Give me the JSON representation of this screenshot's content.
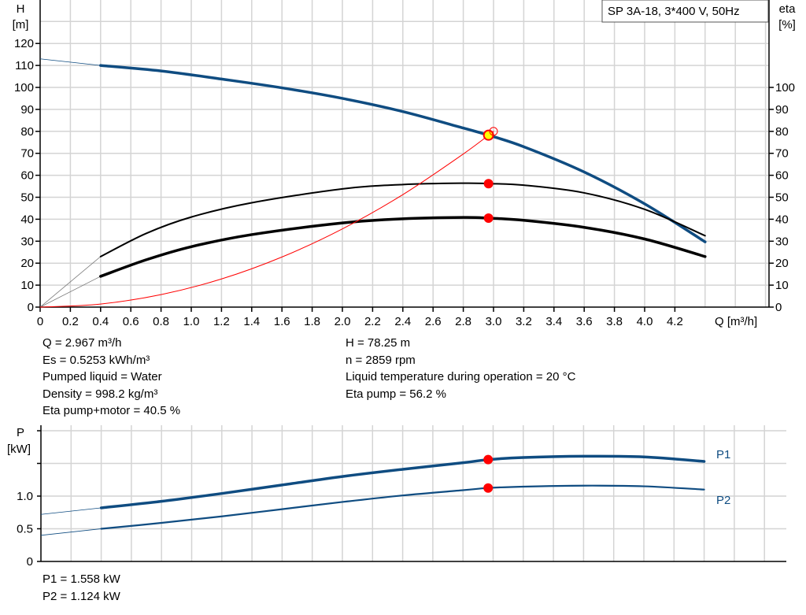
{
  "legend_box": "SP 3A-18, 3*400 V, 50Hz",
  "info_top": {
    "left": [
      "Q = 2.967 m³/h",
      "Es = 0.5253 kWh/m³",
      "Pumped liquid = Water",
      "Density = 998.2 kg/m³",
      "Eta pump+motor = 40.5 %"
    ],
    "right": [
      "H = 78.25 m",
      "n = 2859 rpm",
      "Liquid temperature during operation = 20 °C",
      "Eta pump = 56.2 %"
    ]
  },
  "info_bottom": [
    "P1 = 1.558 kW",
    "P2 = 1.124 kW"
  ],
  "colors": {
    "head": "#0f4c81",
    "eta": "#000000",
    "system": "#ff0000",
    "power": "#0f4c81",
    "marker": "#ff0000",
    "op_marker": "#ffff00",
    "grid": "#d4d4d4"
  },
  "chart_data": [
    {
      "type": "line",
      "title": "",
      "xlabel": "Q [m³/h]",
      "ylabel": "H\n[m]",
      "y2label": "eta\n[%]",
      "ylabel_lines": [
        "H",
        "[m]"
      ],
      "y2label_lines": [
        "eta",
        "[%]"
      ],
      "xlim": [
        0,
        4.83
      ],
      "ylim": [
        0,
        140
      ],
      "y2lim": [
        0,
        140
      ],
      "xticks": [
        "0",
        "0.2",
        "0.4",
        "0.6",
        "0.8",
        "1.0",
        "1.2",
        "1.4",
        "1.6",
        "1.8",
        "2.0",
        "2.2",
        "2.4",
        "2.6",
        "2.8",
        "3.0",
        "3.2",
        "3.4",
        "3.6",
        "3.8",
        "4.0",
        "4.2"
      ],
      "yticks": [
        "0",
        "10",
        "20",
        "30",
        "40",
        "50",
        "60",
        "70",
        "80",
        "90",
        "100",
        "110",
        "120"
      ],
      "y2ticks": [
        "0",
        "10",
        "20",
        "30",
        "40",
        "50",
        "60",
        "70",
        "80",
        "90",
        "100"
      ],
      "grid": true,
      "series": [
        {
          "key": "H",
          "axis": "left",
          "x": [
            0.4,
            0.8,
            1.2,
            1.6,
            2.0,
            2.4,
            2.8,
            2.967,
            3.2,
            3.6,
            4.0,
            4.4
          ],
          "y": [
            110,
            107.5,
            103.8,
            99.8,
            95,
            89,
            81.5,
            78.25,
            73,
            61.5,
            47,
            29.7
          ],
          "ext_x": [
            0,
            0.4
          ],
          "ext_y": [
            113,
            110
          ]
        },
        {
          "key": "eta_pump",
          "axis": "right",
          "x": [
            0.4,
            0.7,
            1.0,
            1.4,
            2.0,
            2.4,
            2.8,
            2.967,
            3.2,
            3.6,
            4.0,
            4.4
          ],
          "y": [
            23,
            33.5,
            41,
            47.5,
            53.8,
            55.8,
            56.4,
            56.2,
            55.5,
            52,
            44.5,
            32.5
          ],
          "ext_x": [
            0,
            0.4
          ],
          "ext_y": [
            0,
            23
          ]
        },
        {
          "key": "eta_total",
          "axis": "right",
          "x": [
            0.4,
            0.7,
            1.0,
            1.4,
            2.0,
            2.4,
            2.8,
            2.967,
            3.2,
            3.6,
            4.0,
            4.4
          ],
          "y": [
            14,
            21.5,
            27.5,
            33,
            38.3,
            40.2,
            40.8,
            40.5,
            39.5,
            36.3,
            31,
            23
          ],
          "ext_x": [
            0,
            0.4
          ],
          "ext_y": [
            0,
            14
          ]
        },
        {
          "key": "system_curve",
          "axis": "left",
          "x": [
            0,
            0.4,
            0.8,
            1.2,
            1.6,
            2.0,
            2.4,
            2.8,
            3.0
          ],
          "y": [
            0,
            1.4,
            5.7,
            12.8,
            22.8,
            35.6,
            51.2,
            69.7,
            80
          ]
        }
      ],
      "markers": [
        {
          "series": "H",
          "x": 2.967,
          "y": 78.25,
          "style": "operating-point"
        },
        {
          "series": "eta_pump",
          "x": 2.967,
          "y": 56.2,
          "style": "dot"
        },
        {
          "series": "eta_total",
          "x": 2.967,
          "y": 40.5,
          "style": "dot"
        },
        {
          "series": "system_curve",
          "x": 3.0,
          "y": 80,
          "style": "hollow"
        }
      ]
    },
    {
      "type": "line",
      "title": "",
      "ylabel_lines": [
        "P",
        "[kW]"
      ],
      "xlim": [
        0,
        4.94
      ],
      "ylim": [
        0,
        2.05
      ],
      "yticks": [
        "0",
        "0.5",
        "1.0"
      ],
      "ygrid": [
        0,
        0.5,
        1.0,
        1.5,
        2.0
      ],
      "grid": true,
      "series": [
        {
          "name": "P1",
          "x": [
            0.4,
            0.8,
            1.2,
            1.6,
            2.0,
            2.4,
            2.8,
            2.967,
            3.2,
            3.6,
            4.0,
            4.4
          ],
          "y": [
            0.82,
            0.92,
            1.04,
            1.17,
            1.3,
            1.41,
            1.51,
            1.558,
            1.59,
            1.61,
            1.6,
            1.53
          ],
          "ext_x": [
            0,
            0.4
          ],
          "ext_y": [
            0.72,
            0.82
          ]
        },
        {
          "name": "P2",
          "x": [
            0.4,
            0.8,
            1.2,
            1.6,
            2.0,
            2.4,
            2.8,
            2.967,
            3.2,
            3.6,
            4.0,
            4.4
          ],
          "y": [
            0.5,
            0.59,
            0.69,
            0.8,
            0.91,
            1.01,
            1.09,
            1.124,
            1.145,
            1.16,
            1.15,
            1.1
          ],
          "ext_x": [
            0,
            0.4
          ],
          "ext_y": [
            0.4,
            0.5
          ]
        }
      ],
      "markers": [
        {
          "series": "P1",
          "x": 2.967,
          "y": 1.558
        },
        {
          "series": "P2",
          "x": 2.967,
          "y": 1.124
        }
      ]
    }
  ]
}
